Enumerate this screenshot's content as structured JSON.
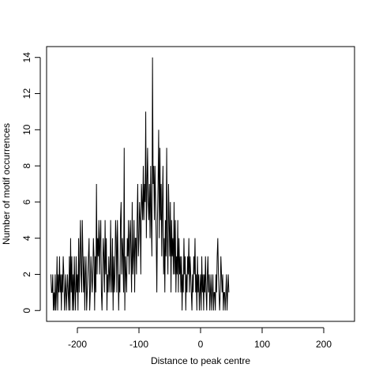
{
  "chart_data": {
    "type": "line",
    "title": "",
    "xlabel": "Distance to peak centre",
    "ylabel": "Number of motif occurrences",
    "xlim": [
      -250,
      250
    ],
    "ylim": [
      -0.6,
      14.6
    ],
    "x_ticks": [
      -200,
      -100,
      0,
      100,
      200
    ],
    "y_ticks": [
      0,
      2,
      4,
      6,
      8,
      10,
      12,
      14
    ],
    "x_tick_labels": [
      "-200",
      "-100",
      "0",
      "100",
      "200"
    ],
    "y_tick_labels": [
      "0",
      "2",
      "4",
      "6",
      "8",
      "10",
      "12",
      "14"
    ],
    "grid": false,
    "legend": "none",
    "line_color": "#000000",
    "series": [
      {
        "x_start": -243,
        "x_step": 1,
        "values": [
          2,
          1,
          1,
          2,
          0,
          1,
          0,
          2,
          0,
          1,
          3,
          0,
          2,
          1,
          3,
          1,
          2,
          0,
          2,
          1,
          3,
          2,
          0,
          1,
          2,
          0,
          1,
          2,
          1,
          0,
          3,
          0,
          4,
          1,
          3,
          0,
          2,
          0,
          3,
          1,
          0,
          3,
          1,
          2,
          0,
          4,
          1,
          3,
          5,
          2,
          1,
          5,
          3,
          1,
          3,
          0,
          2,
          3,
          0,
          1,
          2,
          3,
          4,
          0,
          1,
          3,
          2,
          1,
          2,
          4,
          3,
          0,
          3,
          1,
          7,
          2,
          4,
          3,
          5,
          2,
          4,
          5,
          1,
          0,
          2,
          4,
          3,
          1,
          5,
          2,
          4,
          0,
          2,
          1,
          3,
          2,
          1,
          5,
          2,
          1,
          4,
          0,
          3,
          1,
          2,
          5,
          4,
          1,
          5,
          3,
          0,
          2,
          1,
          5,
          6,
          2,
          4,
          3,
          1,
          9,
          0,
          3,
          2,
          1,
          4,
          3,
          5,
          2,
          4,
          5,
          3,
          1,
          6,
          2,
          3,
          5,
          1,
          4,
          4,
          2,
          5,
          7,
          3,
          4,
          6,
          5,
          2,
          7,
          6,
          5,
          8,
          5,
          7,
          6,
          11,
          4,
          7,
          9,
          6,
          5,
          7,
          4,
          8,
          5,
          3,
          14,
          7,
          8,
          5,
          8,
          6,
          4,
          1,
          5,
          7,
          10,
          4,
          9,
          5,
          7,
          3,
          6,
          8,
          2,
          4,
          1,
          5,
          3,
          9,
          4,
          2,
          7,
          5,
          3,
          6,
          1,
          5,
          3,
          4,
          2,
          6,
          2,
          5,
          1,
          3,
          2,
          5,
          1,
          4,
          2,
          3,
          1,
          3,
          0,
          2,
          1,
          4,
          2,
          3,
          0,
          2,
          1,
          3,
          2,
          4,
          1,
          3,
          2,
          1,
          0,
          2,
          1,
          3,
          2,
          4,
          1,
          2,
          0,
          3,
          1,
          2,
          0,
          1,
          2,
          0,
          3,
          1,
          2,
          0,
          2,
          1,
          3,
          1,
          0,
          2,
          3,
          1,
          2,
          0,
          1,
          2,
          0,
          1,
          2,
          0,
          1,
          1,
          0,
          2,
          1,
          3,
          4,
          2,
          1,
          0,
          1,
          3,
          2,
          1,
          2,
          0,
          1,
          1,
          0,
          1,
          2,
          0,
          1,
          2,
          1
        ]
      }
    ]
  }
}
